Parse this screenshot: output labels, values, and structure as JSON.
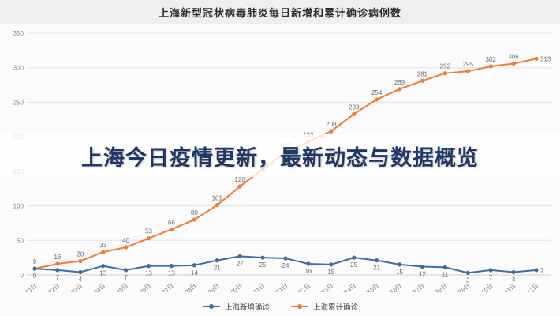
{
  "page": {
    "banner": "上海今日疫情更新，最新动态与数据概览"
  },
  "chart_data": {
    "type": "line",
    "title": "上海新型冠状病毒肺炎每日新增和累计确诊病例数",
    "categories": [
      "1月21日",
      "1月22日",
      "1月23日",
      "1月24日",
      "1月25日",
      "1月26日",
      "1月27日",
      "1月28日",
      "1月29日",
      "1月30日",
      "1月31日",
      "2月1日",
      "2月2日",
      "2月3日",
      "2月4日",
      "2月5日",
      "2月6日",
      "2月7日",
      "2月8日",
      "2月9日",
      "2月10日",
      "2月11日",
      "2月12日"
    ],
    "series": [
      {
        "name": "上海新增确诊",
        "color": "#3f6e9e",
        "label_position": "below",
        "values": [
          9,
          7,
          4,
          13,
          7,
          13,
          13,
          14,
          21,
          27,
          25,
          24,
          16,
          15,
          25,
          21,
          15,
          12,
          11,
          3,
          7,
          4,
          7
        ]
      },
      {
        "name": "上海累计确诊",
        "color": "#ec7d33",
        "label_position": "above",
        "values": [
          9,
          16,
          20,
          33,
          40,
          53,
          66,
          80,
          101,
          128,
          153,
          177,
          193,
          208,
          233,
          254,
          269,
          281,
          292,
          295,
          302,
          306,
          313
        ]
      }
    ],
    "ylim": [
      0,
      350
    ],
    "yticks": [
      0,
      50,
      100,
      150,
      200,
      250,
      300,
      350
    ],
    "grid": true,
    "legend_position": "bottom",
    "colors": {
      "gridline": "#e2e2e2",
      "axis_label": "#8a8a8a",
      "data_label": "#6b6b6b",
      "banner_text": "#1f3864"
    }
  }
}
